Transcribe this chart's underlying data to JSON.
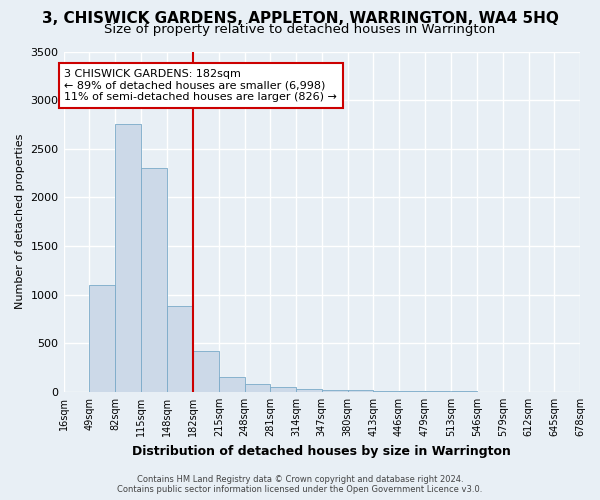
{
  "title": "3, CHISWICK GARDENS, APPLETON, WARRINGTON, WA4 5HQ",
  "subtitle": "Size of property relative to detached houses in Warrington",
  "xlabel": "Distribution of detached houses by size in Warrington",
  "ylabel": "Number of detached properties",
  "footer_line1": "Contains HM Land Registry data © Crown copyright and database right 2024.",
  "footer_line2": "Contains public sector information licensed under the Open Government Licence v3.0.",
  "bin_edges": [
    16,
    49,
    82,
    115,
    148,
    182,
    215,
    248,
    281,
    314,
    347,
    380,
    413,
    446,
    479,
    513,
    546,
    579,
    612,
    645,
    678
  ],
  "bar_heights": [
    0,
    1100,
    2750,
    2300,
    880,
    420,
    150,
    80,
    50,
    30,
    20,
    15,
    10,
    8,
    5,
    5,
    3,
    3,
    2,
    1
  ],
  "bar_color": "#ccd9e8",
  "bar_edge_color": "#7aaac8",
  "vline_x": 182,
  "vline_color": "#cc0000",
  "annotation_title": "3 CHISWICK GARDENS: 182sqm",
  "annotation_line1": "← 89% of detached houses are smaller (6,998)",
  "annotation_line2": "11% of semi-detached houses are larger (826) →",
  "annotation_box_color": "#cc0000",
  "ylim": [
    0,
    3500
  ],
  "yticks": [
    0,
    500,
    1000,
    1500,
    2000,
    2500,
    3000,
    3500
  ],
  "bg_color": "#e8eff5",
  "plot_bg_color": "#e8eff5",
  "grid_color": "#ffffff",
  "title_fontsize": 11,
  "subtitle_fontsize": 9.5,
  "ylabel_fontsize": 8,
  "xlabel_fontsize": 9,
  "tick_fontsize": 7,
  "ytick_fontsize": 8,
  "footer_fontsize": 6,
  "annotation_fontsize": 8
}
